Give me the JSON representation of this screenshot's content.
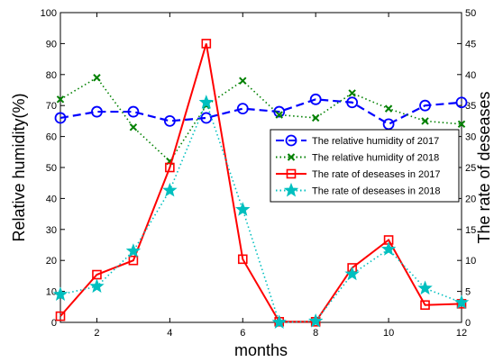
{
  "chart_data": {
    "type": "line",
    "xlabel": "months",
    "ylabel_left": "Relative humidity(%)",
    "ylabel_right": "The rate of deseases",
    "xlim": [
      1,
      12
    ],
    "ylim_left": [
      0,
      100
    ],
    "ylim_right": [
      0,
      50
    ],
    "x_ticks": [
      2,
      4,
      6,
      8,
      10,
      12
    ],
    "y_ticks_left": [
      0,
      10,
      20,
      30,
      40,
      50,
      60,
      70,
      80,
      90,
      100
    ],
    "y_ticks_right": [
      0,
      5,
      10,
      15,
      20,
      25,
      30,
      35,
      40,
      45,
      50
    ],
    "grid": false,
    "legend_position": "center-right",
    "x": [
      1,
      2,
      3,
      4,
      5,
      6,
      7,
      8,
      9,
      10,
      11,
      12
    ],
    "series": [
      {
        "name": "The relative humidity of 2017",
        "axis": "left",
        "color": "#0000ff",
        "line_style": "dashed",
        "marker": "circle",
        "values": [
          66,
          68,
          68,
          65,
          66,
          69,
          68,
          72,
          71,
          64,
          70,
          71
        ]
      },
      {
        "name": "The relative humidity of 2018",
        "axis": "left",
        "color": "#008000",
        "line_style": "dotted",
        "marker": "x",
        "values": [
          72,
          79,
          63,
          52,
          70,
          78,
          67,
          66,
          74,
          69,
          65,
          64
        ]
      },
      {
        "name": "The rate of deseases in 2017",
        "axis": "right",
        "color": "#ff0000",
        "line_style": "solid",
        "marker": "square",
        "values": [
          1,
          7.7,
          10,
          25,
          45,
          10.2,
          0.1,
          0.1,
          8.8,
          13.3,
          2.8,
          3
        ]
      },
      {
        "name": "The rate of deseases in 2018",
        "axis": "right",
        "color": "#00bfbf",
        "line_style": "dotted",
        "marker": "star",
        "values": [
          4.5,
          5.8,
          11.5,
          21.3,
          35.5,
          18.2,
          0,
          0.2,
          7.8,
          11.8,
          5.5,
          3.2
        ]
      }
    ]
  }
}
